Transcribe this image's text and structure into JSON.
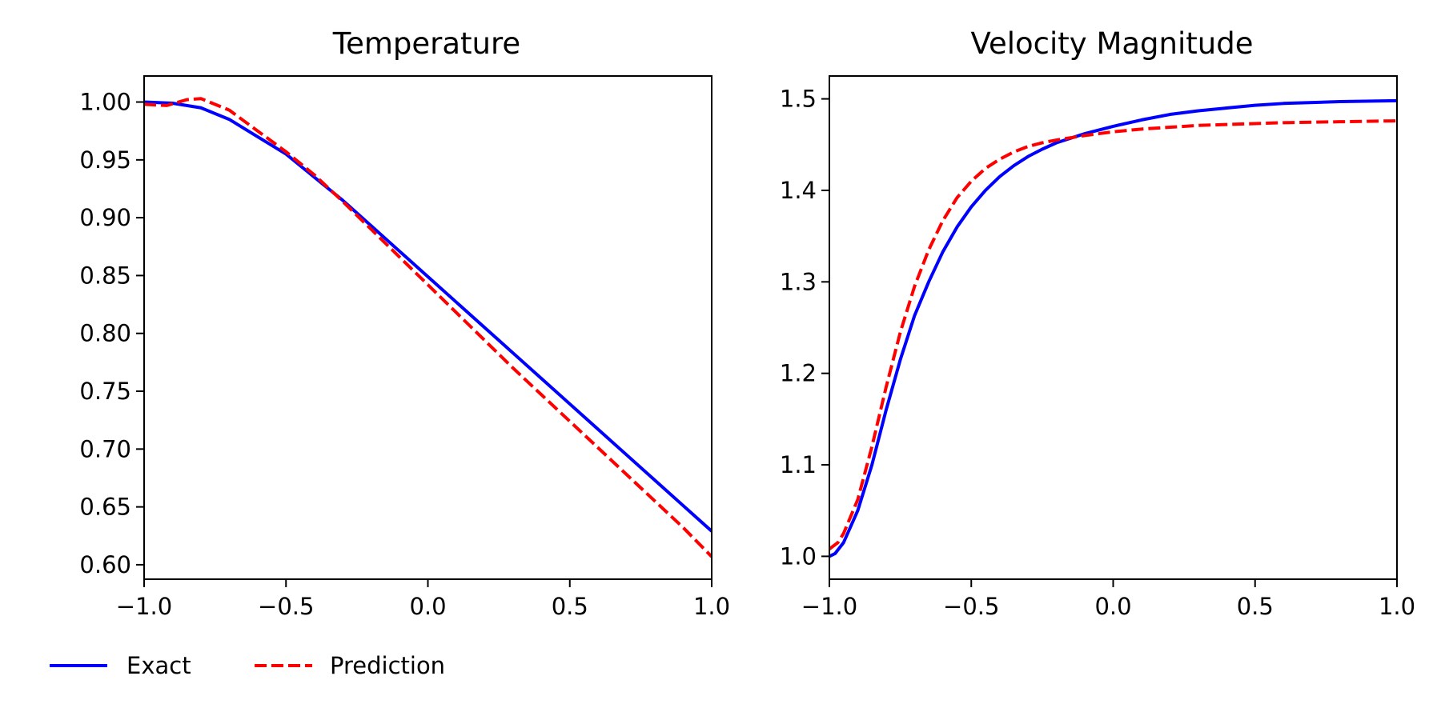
{
  "chart_data": [
    {
      "type": "line",
      "title": "Temperature",
      "xlabel": "",
      "ylabel": "",
      "xlim": [
        -1.0,
        1.0
      ],
      "ylim": [
        0.5875,
        1.0225
      ],
      "xticks": [
        -1.0,
        -0.5,
        0.0,
        0.5,
        1.0
      ],
      "xtick_labels": [
        "−1.0",
        "−0.5",
        "0.0",
        "0.5",
        "1.0"
      ],
      "yticks": [
        0.6,
        0.65,
        0.7,
        0.75,
        0.8,
        0.85,
        0.9,
        0.95,
        1.0
      ],
      "ytick_labels": [
        "0.60",
        "0.65",
        "0.70",
        "0.75",
        "0.80",
        "0.85",
        "0.90",
        "0.95",
        "1.00"
      ],
      "grid": false,
      "series": [
        {
          "name": "Exact",
          "color": "#0000ff",
          "style": "solid",
          "x": [
            -1.0,
            -0.9,
            -0.8,
            -0.7,
            -0.6,
            -0.5,
            -0.4,
            -0.3,
            -0.2,
            -0.1,
            0.0,
            0.1,
            0.2,
            0.3,
            0.4,
            0.5,
            0.6,
            0.7,
            0.8,
            0.9,
            1.0
          ],
          "y": [
            1.0,
            0.999,
            0.995,
            0.985,
            0.97,
            0.955,
            0.935,
            0.915,
            0.893,
            0.871,
            0.849,
            0.827,
            0.805,
            0.783,
            0.761,
            0.739,
            0.717,
            0.695,
            0.673,
            0.651,
            0.629
          ]
        },
        {
          "name": "Prediction",
          "color": "#ff0000",
          "style": "dashed",
          "x": [
            -1.0,
            -0.92,
            -0.85,
            -0.8,
            -0.7,
            -0.6,
            -0.5,
            -0.4,
            -0.3,
            -0.2,
            -0.1,
            0.0,
            0.1,
            0.2,
            0.3,
            0.4,
            0.5,
            0.6,
            0.7,
            0.8,
            0.9,
            1.0
          ],
          "y": [
            0.998,
            0.997,
            1.002,
            1.003,
            0.993,
            0.975,
            0.957,
            0.937,
            0.914,
            0.89,
            0.866,
            0.842,
            0.818,
            0.794,
            0.77,
            0.747,
            0.724,
            0.701,
            0.678,
            0.655,
            0.632,
            0.607
          ]
        }
      ]
    },
    {
      "type": "line",
      "title": "Velocity Magnitude",
      "xlabel": "",
      "ylabel": "",
      "xlim": [
        -1.0,
        1.0
      ],
      "ylim": [
        0.975,
        1.525
      ],
      "xticks": [
        -1.0,
        -0.5,
        0.0,
        0.5,
        1.0
      ],
      "xtick_labels": [
        "−1.0",
        "−0.5",
        "0.0",
        "0.5",
        "1.0"
      ],
      "yticks": [
        1.0,
        1.1,
        1.2,
        1.3,
        1.4,
        1.5
      ],
      "ytick_labels": [
        "1.0",
        "1.1",
        "1.2",
        "1.3",
        "1.4",
        "1.5"
      ],
      "grid": false,
      "series": [
        {
          "name": "Exact",
          "color": "#0000ff",
          "style": "solid",
          "x": [
            -1.0,
            -0.98,
            -0.95,
            -0.9,
            -0.85,
            -0.8,
            -0.75,
            -0.7,
            -0.65,
            -0.6,
            -0.55,
            -0.5,
            -0.45,
            -0.4,
            -0.35,
            -0.3,
            -0.25,
            -0.2,
            -0.1,
            0.0,
            0.1,
            0.2,
            0.3,
            0.4,
            0.5,
            0.6,
            0.8,
            1.0
          ],
          "y": [
            1.0,
            1.003,
            1.015,
            1.05,
            1.1,
            1.16,
            1.215,
            1.263,
            1.3,
            1.333,
            1.36,
            1.382,
            1.4,
            1.415,
            1.427,
            1.437,
            1.445,
            1.452,
            1.462,
            1.47,
            1.477,
            1.483,
            1.487,
            1.49,
            1.493,
            1.495,
            1.497,
            1.498
          ]
        },
        {
          "name": "Prediction",
          "color": "#ff0000",
          "style": "dashed",
          "x": [
            -1.0,
            -0.97,
            -0.95,
            -0.9,
            -0.85,
            -0.8,
            -0.75,
            -0.7,
            -0.65,
            -0.6,
            -0.55,
            -0.5,
            -0.45,
            -0.4,
            -0.35,
            -0.3,
            -0.25,
            -0.2,
            -0.1,
            0.0,
            0.1,
            0.2,
            0.3,
            0.4,
            0.5,
            0.6,
            0.8,
            1.0
          ],
          "y": [
            1.008,
            1.015,
            1.025,
            1.062,
            1.12,
            1.185,
            1.245,
            1.295,
            1.335,
            1.367,
            1.392,
            1.41,
            1.424,
            1.434,
            1.442,
            1.448,
            1.452,
            1.455,
            1.46,
            1.464,
            1.467,
            1.469,
            1.471,
            1.472,
            1.473,
            1.474,
            1.475,
            1.476
          ]
        }
      ]
    }
  ],
  "legend": {
    "placement": "bottom-left",
    "entries": [
      {
        "label": "Exact",
        "color": "#0000ff",
        "style": "solid"
      },
      {
        "label": "Prediction",
        "color": "#ff0000",
        "style": "dashed"
      }
    ]
  }
}
